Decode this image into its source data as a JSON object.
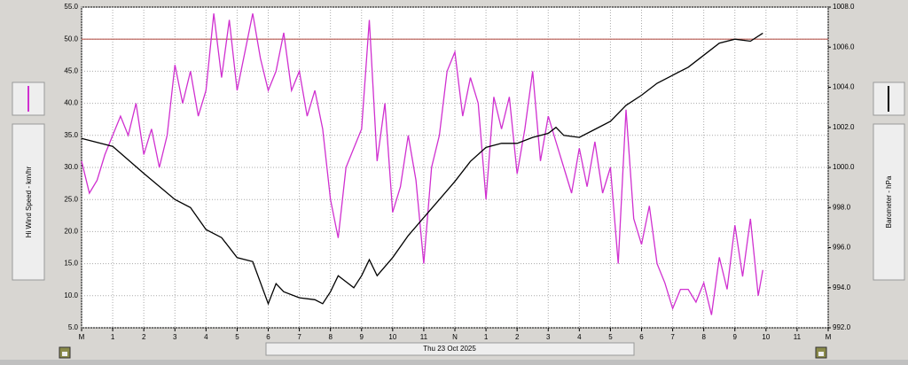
{
  "chart_data": {
    "type": "line",
    "xlabel": "Thu 23 Oct 2025",
    "ylabel": "Hi Wind Speed - km/hr",
    "y2label": "Barometer - hPa",
    "xlim": [
      0,
      24
    ],
    "xticks": [
      {
        "value": 0,
        "label": "M"
      },
      1,
      2,
      3,
      4,
      5,
      6,
      7,
      8,
      9,
      10,
      11,
      {
        "value": 12,
        "label": "N"
      },
      {
        "value": 13,
        "label": "1"
      },
      {
        "value": 14,
        "label": "2"
      },
      {
        "value": 15,
        "label": "3"
      },
      {
        "value": 16,
        "label": "4"
      },
      {
        "value": 17,
        "label": "5"
      },
      {
        "value": 18,
        "label": "6"
      },
      {
        "value": 19,
        "label": "7"
      },
      {
        "value": 20,
        "label": "8"
      },
      {
        "value": 21,
        "label": "9"
      },
      {
        "value": 22,
        "label": "10"
      },
      {
        "value": 23,
        "label": "11"
      },
      {
        "value": 24,
        "label": "M"
      }
    ],
    "ylim": [
      5,
      55
    ],
    "yticks": [
      {
        "value": 5,
        "label": "5.0"
      },
      {
        "value": 10,
        "label": "10.0"
      },
      {
        "value": 15,
        "label": "15.0"
      },
      {
        "value": 20,
        "label": "20.0"
      },
      {
        "value": 25,
        "label": "25.0"
      },
      {
        "value": 30,
        "label": "30.0"
      },
      {
        "value": 35,
        "label": "35.0"
      },
      {
        "value": 40,
        "label": "40.0"
      },
      {
        "value": 45,
        "label": "45.0"
      },
      {
        "value": 50,
        "label": "50.0"
      },
      {
        "value": 55,
        "label": "55.0"
      }
    ],
    "y2lim": [
      992,
      1008
    ],
    "y2ticks": [
      {
        "value": 992,
        "label": "992.0"
      },
      {
        "value": 994,
        "label": "994.0"
      },
      {
        "value": 996,
        "label": "996.0"
      },
      {
        "value": 998,
        "label": "998.0"
      },
      {
        "value": 1000,
        "label": "1000.0"
      },
      {
        "value": 1002,
        "label": "1002.0"
      },
      {
        "value": 1004,
        "label": "1004.0"
      },
      {
        "value": 1006,
        "label": "1006.0"
      },
      {
        "value": 1008,
        "label": "1008.0"
      }
    ],
    "grid": true,
    "reference_line": {
      "value": 50,
      "color": "#b85a50"
    },
    "series": [
      {
        "color": "#d030d0",
        "axis": "y",
        "x": [
          0,
          0.25,
          0.5,
          0.75,
          1,
          1.25,
          1.5,
          1.75,
          2,
          2.25,
          2.5,
          2.75,
          3,
          3.25,
          3.5,
          3.75,
          4,
          4.25,
          4.5,
          4.75,
          5,
          5.25,
          5.5,
          5.75,
          6,
          6.25,
          6.5,
          6.75,
          7,
          7.25,
          7.5,
          7.75,
          8,
          8.25,
          8.5,
          8.75,
          9,
          9.25,
          9.5,
          9.75,
          10,
          10.25,
          10.5,
          10.75,
          11,
          11.25,
          11.5,
          11.75,
          12,
          12.25,
          12.5,
          12.75,
          13,
          13.25,
          13.5,
          13.75,
          14,
          14.25,
          14.5,
          14.75,
          15,
          15.25,
          15.5,
          15.75,
          16,
          16.25,
          16.5,
          16.75,
          17,
          17.25,
          17.5,
          17.75,
          18,
          18.25,
          18.5,
          18.75,
          19,
          19.25,
          19.5,
          19.75,
          20,
          20.25,
          20.5,
          20.75,
          21,
          21.25,
          21.5,
          21.75,
          21.9
        ],
        "values": [
          31,
          26,
          28,
          32,
          35,
          38,
          35,
          40,
          32,
          36,
          30,
          35,
          46,
          40,
          45,
          38,
          42,
          54,
          44,
          53,
          42,
          48,
          54,
          47,
          42,
          45,
          51,
          42,
          45,
          38,
          42,
          36,
          25,
          19,
          30,
          33,
          36,
          53,
          31,
          40,
          23,
          27,
          35,
          28,
          15,
          30,
          35,
          45,
          48,
          38,
          44,
          40,
          25,
          41,
          36,
          41,
          29,
          36,
          45,
          31,
          38,
          34,
          30,
          26,
          33,
          27,
          34,
          26,
          30,
          15,
          39,
          22,
          18,
          24,
          15,
          12,
          8,
          11,
          11,
          9,
          12,
          7,
          16,
          11,
          21,
          13,
          22,
          10,
          14
        ]
      },
      {
        "color": "#000000",
        "axis": "y2",
        "x": [
          0,
          1,
          2,
          3,
          3.5,
          4,
          4.5,
          5,
          5.5,
          6,
          6.25,
          6.5,
          7,
          7.5,
          7.75,
          8,
          8.25,
          8.5,
          8.75,
          9,
          9.25,
          9.5,
          10,
          10.5,
          11,
          11.5,
          12,
          12.5,
          13,
          13.5,
          14,
          14.5,
          15,
          15.25,
          15.5,
          16,
          16.5,
          17,
          17.5,
          18,
          18.5,
          19,
          19.5,
          20,
          20.5,
          21,
          21.5,
          21.9
        ],
        "values": [
          1001.45,
          1001.05,
          999.7,
          998.4,
          998.0,
          996.9,
          996.5,
          995.5,
          995.3,
          993.2,
          994.2,
          993.8,
          993.5,
          993.4,
          993.2,
          993.8,
          994.6,
          994.3,
          994.0,
          994.6,
          995.4,
          994.6,
          995.5,
          996.6,
          997.5,
          998.4,
          999.3,
          1000.3,
          1001.0,
          1001.2,
          1001.2,
          1001.5,
          1001.7,
          1002.0,
          1001.6,
          1001.5,
          1001.9,
          1002.3,
          1003.1,
          1003.6,
          1004.2,
          1004.6,
          1005.0,
          1005.6,
          1006.2,
          1006.4,
          1006.3,
          1006.7
        ]
      }
    ]
  }
}
